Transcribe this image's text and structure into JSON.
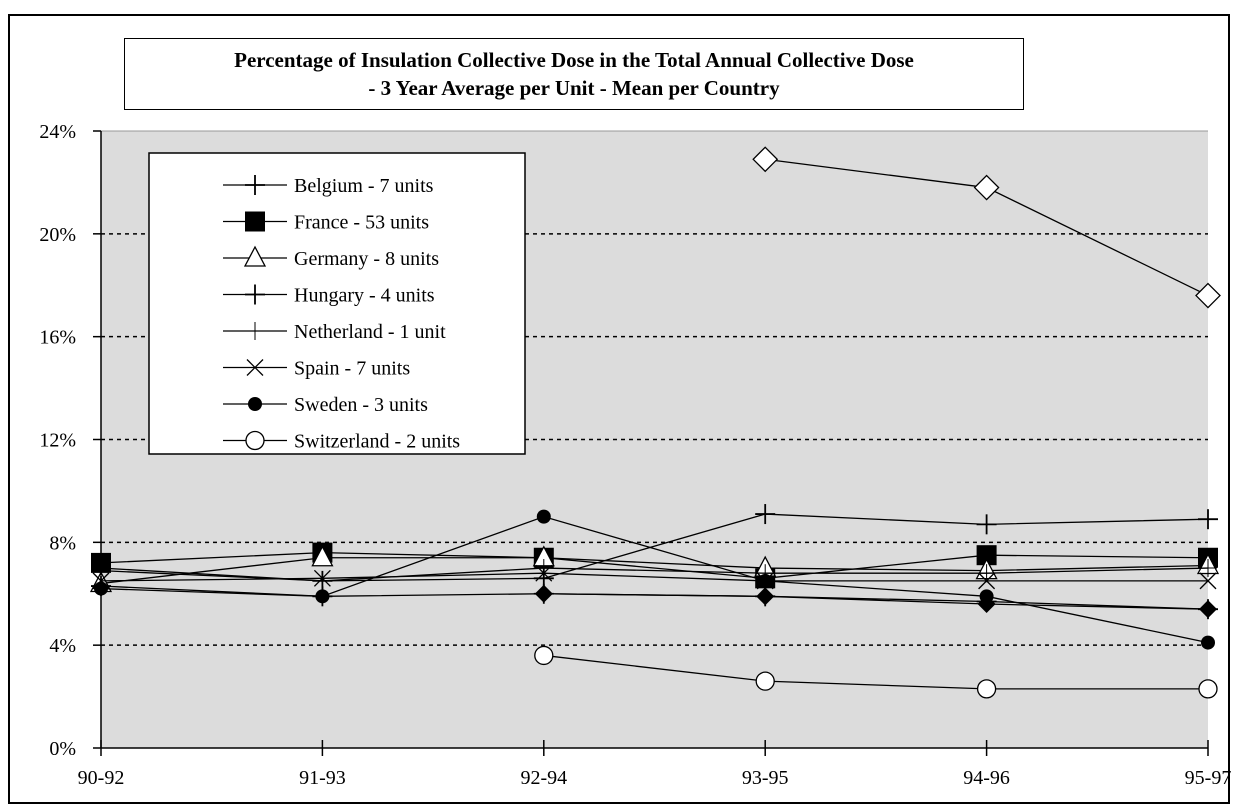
{
  "chart_data": {
    "type": "line",
    "title": "Percentage of Insulation Collective Dose in the Total Annual Collective Dose",
    "subtitle": "- 3 Year Average per Unit - Mean per Country",
    "xlabel": "",
    "ylabel": "",
    "categories": [
      "90-92",
      "91-93",
      "92-94",
      "93-95",
      "94-96",
      "95-97"
    ],
    "ylim": [
      0,
      24
    ],
    "yticks": [
      0,
      4,
      8,
      12,
      16,
      20,
      24
    ],
    "ytick_labels": [
      "0%",
      "4%",
      "8%",
      "12%",
      "16%",
      "20%",
      "24%"
    ],
    "grid": "horizontal dashed",
    "legend_position": "top-left",
    "series": [
      {
        "name": "Belgium - 7 units",
        "marker": "plus-thick",
        "values": [
          6.9,
          6.5,
          6.6,
          9.1,
          8.7,
          8.9
        ]
      },
      {
        "name": "France - 53 units",
        "marker": "square-filled",
        "values": [
          7.2,
          7.6,
          7.4,
          6.6,
          7.5,
          7.4
        ]
      },
      {
        "name": "Germany - 8 units",
        "marker": "triangle-open",
        "values": [
          6.4,
          7.4,
          7.4,
          7.0,
          6.9,
          7.1
        ]
      },
      {
        "name": "Hungary - 4 units",
        "marker": "plus-thick",
        "values": [
          6.3,
          5.9,
          6.0,
          5.9,
          5.7,
          5.4
        ]
      },
      {
        "name": "Netherland - 1 unit",
        "marker": "plus-thin",
        "values": [
          7.0,
          6.5,
          7.0,
          6.8,
          6.8,
          7.0
        ]
      },
      {
        "name": "Spain - 7 units",
        "marker": "x",
        "values": [
          6.5,
          6.6,
          6.8,
          6.5,
          6.5,
          6.5
        ]
      },
      {
        "name": "Sweden - 3 units",
        "marker": "circle-filled",
        "values": [
          6.2,
          5.9,
          9.0,
          6.5,
          5.9,
          4.1
        ]
      },
      {
        "name": "Switzerland - 2 units",
        "marker": "circle-open",
        "values": [
          null,
          null,
          3.6,
          2.6,
          2.3,
          2.3
        ]
      },
      {
        "marker": "diamond-open",
        "values": [
          null,
          null,
          null,
          22.9,
          21.8,
          17.6
        ]
      },
      {
        "marker": "diamond-filled",
        "values": [
          null,
          null,
          6.0,
          5.9,
          5.6,
          5.4
        ]
      }
    ]
  }
}
